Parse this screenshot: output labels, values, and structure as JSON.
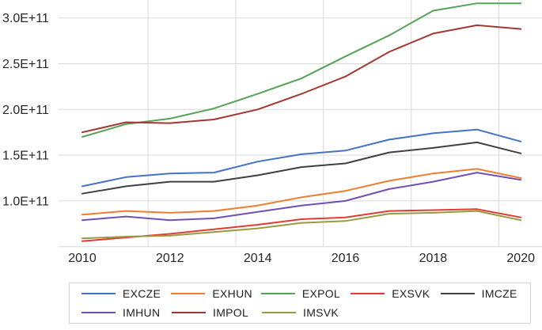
{
  "chart_data": {
    "type": "line",
    "title": "",
    "xlabel": "",
    "ylabel": "",
    "x_years": [
      2010,
      2011,
      2012,
      2013,
      2014,
      2015,
      2016,
      2017,
      2018,
      2019,
      2020
    ],
    "x_tick_labels": [
      "2010",
      "2012",
      "2014",
      "2016",
      "2018",
      "2020"
    ],
    "y_tick_labels": [
      "3.0E+11",
      "2.5E+11",
      "2.0E+11",
      "1.5E+11",
      "1.0E+11"
    ],
    "y_tick_values_e9": [
      300,
      250,
      200,
      150,
      100
    ],
    "y_gridline_values_e9": [
      300,
      250,
      200,
      150,
      100,
      50
    ],
    "x_gridline_years": [
      2011.5,
      2013.5,
      2015.5,
      2017.5,
      2019.5
    ],
    "ylim_e9": [
      50,
      320
    ],
    "xlim": [
      2010,
      2020
    ],
    "value_unit": "1e9 (axis shown in scientific notation, e.g. 3.0E+11)",
    "grid": true,
    "legend_position": "bottom",
    "series": [
      {
        "name": "EXCZE",
        "color": "#4472C4",
        "values": [
          116,
          126,
          130,
          131,
          143,
          151,
          155,
          167,
          174,
          178,
          165
        ]
      },
      {
        "name": "EXHUN",
        "color": "#ED7D31",
        "values": [
          85,
          89,
          87,
          89,
          95,
          104,
          111,
          122,
          130,
          135,
          125
        ]
      },
      {
        "name": "EXPOL",
        "color": "#55A355",
        "values": [
          170,
          184,
          190,
          201,
          217,
          234,
          258,
          281,
          308,
          316,
          316
        ]
      },
      {
        "name": "EXSVK",
        "color": "#E03C33",
        "values": [
          56,
          60,
          64,
          69,
          74,
          80,
          82,
          89,
          90,
          91,
          82
        ]
      },
      {
        "name": "IMCZE",
        "color": "#404040",
        "values": [
          108,
          116,
          121,
          121,
          128,
          137,
          141,
          153,
          158,
          164,
          152
        ]
      },
      {
        "name": "IMHUN",
        "color": "#7050B4",
        "values": [
          79,
          83,
          79,
          81,
          88,
          95,
          100,
          113,
          121,
          131,
          123
        ]
      },
      {
        "name": "IMPOL",
        "color": "#A13931",
        "values": [
          175,
          186,
          185,
          189,
          200,
          217,
          236,
          263,
          283,
          292,
          288
        ]
      },
      {
        "name": "IMSVK",
        "color": "#9A9A40",
        "values": [
          59,
          61,
          62,
          66,
          70,
          76,
          78,
          86,
          87,
          89,
          79
        ]
      }
    ]
  }
}
